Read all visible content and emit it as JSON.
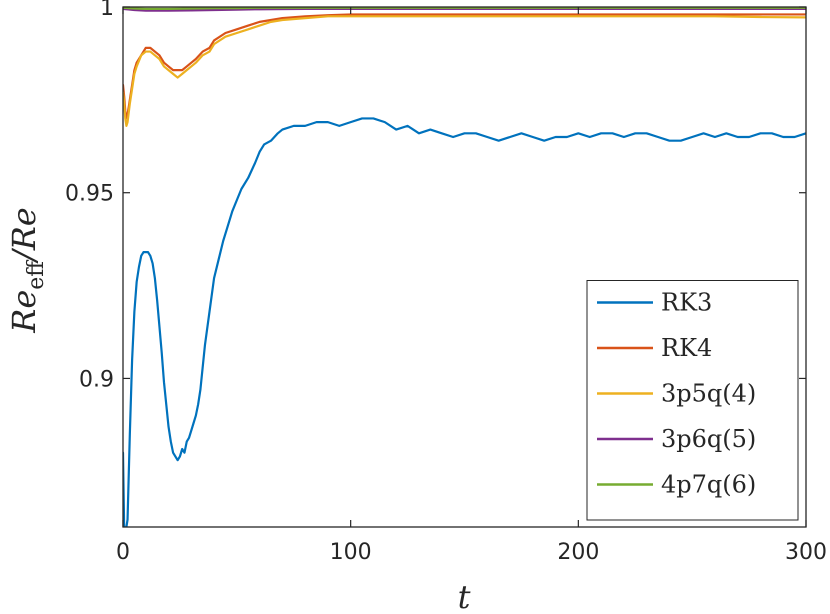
{
  "chart_data": {
    "type": "line",
    "title": "",
    "xlabel": "t",
    "ylabel": {
      "base": "Re",
      "subscript": "eff",
      "suffix": "/Re"
    },
    "xlim": [
      0,
      300
    ],
    "ylim": [
      0.86,
      1.0
    ],
    "xticks": [
      0,
      100,
      200,
      300
    ],
    "xtick_labels": [
      "0",
      "100",
      "200",
      "300"
    ],
    "yticks": [
      0.9,
      0.95,
      1.0
    ],
    "ytick_labels": [
      "0.9",
      "0.95",
      "1"
    ],
    "grid": false,
    "legend_position": "bottom-right",
    "series": [
      {
        "name": "RK3",
        "color": "#0072BD",
        "x": [
          0,
          0.5,
          1,
          2,
          3,
          4,
          5,
          6,
          7,
          8,
          9,
          10,
          11,
          12,
          13,
          14,
          15,
          16,
          17,
          18,
          19,
          20,
          21,
          22,
          23,
          24,
          25,
          26,
          27,
          28,
          29,
          30,
          31,
          32,
          33,
          34,
          35,
          36,
          38,
          40,
          42,
          44,
          46,
          48,
          50,
          52,
          55,
          58,
          60,
          62,
          65,
          68,
          70,
          75,
          80,
          85,
          90,
          95,
          100,
          105,
          110,
          115,
          120,
          125,
          130,
          135,
          140,
          145,
          150,
          155,
          160,
          165,
          170,
          175,
          180,
          185,
          190,
          195,
          200,
          205,
          210,
          215,
          220,
          225,
          230,
          235,
          240,
          245,
          250,
          255,
          260,
          265,
          270,
          275,
          280,
          285,
          290,
          295,
          300
        ],
        "values": [
          0.88,
          0.86,
          0.858,
          0.862,
          0.885,
          0.905,
          0.918,
          0.926,
          0.93,
          0.933,
          0.934,
          0.934,
          0.934,
          0.933,
          0.931,
          0.927,
          0.921,
          0.914,
          0.907,
          0.899,
          0.893,
          0.887,
          0.883,
          0.88,
          0.879,
          0.878,
          0.879,
          0.881,
          0.88,
          0.883,
          0.884,
          0.886,
          0.888,
          0.89,
          0.893,
          0.897,
          0.903,
          0.909,
          0.918,
          0.927,
          0.932,
          0.937,
          0.941,
          0.945,
          0.948,
          0.951,
          0.954,
          0.958,
          0.961,
          0.963,
          0.964,
          0.966,
          0.967,
          0.968,
          0.968,
          0.969,
          0.969,
          0.968,
          0.969,
          0.97,
          0.97,
          0.969,
          0.967,
          0.968,
          0.966,
          0.967,
          0.966,
          0.965,
          0.966,
          0.966,
          0.965,
          0.964,
          0.965,
          0.966,
          0.965,
          0.964,
          0.965,
          0.965,
          0.966,
          0.965,
          0.966,
          0.966,
          0.965,
          0.966,
          0.966,
          0.965,
          0.964,
          0.964,
          0.965,
          0.966,
          0.965,
          0.966,
          0.965,
          0.965,
          0.966,
          0.966,
          0.965,
          0.965,
          0.966
        ]
      },
      {
        "name": "RK4",
        "color": "#D95319",
        "x": [
          0,
          0.5,
          1,
          1.5,
          2,
          3,
          4,
          5,
          6,
          8,
          10,
          12,
          14,
          16,
          18,
          20,
          22,
          24,
          26,
          28,
          30,
          32,
          35,
          38,
          40,
          45,
          50,
          55,
          60,
          65,
          70,
          80,
          90,
          100,
          120,
          140,
          160,
          180,
          200,
          220,
          240,
          260,
          280,
          300
        ],
        "values": [
          0.979,
          0.976,
          0.972,
          0.97,
          0.971,
          0.975,
          0.979,
          0.983,
          0.985,
          0.987,
          0.989,
          0.989,
          0.988,
          0.987,
          0.985,
          0.984,
          0.983,
          0.983,
          0.983,
          0.984,
          0.985,
          0.986,
          0.988,
          0.989,
          0.991,
          0.993,
          0.994,
          0.995,
          0.996,
          0.9965,
          0.997,
          0.9975,
          0.9978,
          0.998,
          0.998,
          0.998,
          0.998,
          0.998,
          0.998,
          0.998,
          0.998,
          0.998,
          0.998,
          0.998
        ]
      },
      {
        "name": "3p5q(4)",
        "color": "#EDB120",
        "x": [
          0,
          0.5,
          1,
          1.5,
          2,
          3,
          4,
          5,
          6,
          8,
          10,
          12,
          14,
          16,
          18,
          20,
          22,
          24,
          26,
          28,
          30,
          32,
          35,
          38,
          40,
          45,
          50,
          55,
          60,
          65,
          70,
          80,
          90,
          100,
          120,
          140,
          160,
          180,
          200,
          220,
          240,
          260,
          280,
          300
        ],
        "values": [
          0.977,
          0.974,
          0.97,
          0.968,
          0.969,
          0.974,
          0.978,
          0.982,
          0.984,
          0.987,
          0.988,
          0.988,
          0.987,
          0.986,
          0.984,
          0.983,
          0.982,
          0.981,
          0.982,
          0.983,
          0.984,
          0.985,
          0.987,
          0.988,
          0.99,
          0.992,
          0.993,
          0.994,
          0.995,
          0.996,
          0.9965,
          0.997,
          0.9975,
          0.9975,
          0.9975,
          0.9975,
          0.9975,
          0.9975,
          0.9975,
          0.9975,
          0.9975,
          0.9975,
          0.9973,
          0.9972
        ]
      },
      {
        "name": "3p6q(5)",
        "color": "#7E2F8E",
        "x": [
          0,
          5,
          10,
          20,
          30,
          40,
          50,
          60,
          80,
          100,
          150,
          200,
          250,
          300
        ],
        "values": [
          0.9995,
          0.9992,
          0.999,
          0.999,
          0.9991,
          0.9992,
          0.9993,
          0.9994,
          0.9995,
          0.9995,
          0.9995,
          0.9995,
          0.9995,
          0.9995
        ]
      },
      {
        "name": "4p7q(6)",
        "color": "#77AC30",
        "x": [
          0,
          5,
          10,
          20,
          30,
          40,
          50,
          60,
          80,
          100,
          150,
          200,
          250,
          300
        ],
        "values": [
          0.9998,
          0.9996,
          0.9995,
          0.9995,
          0.9996,
          0.9997,
          0.9997,
          0.9998,
          0.9998,
          0.9998,
          0.9998,
          0.9998,
          0.9998,
          0.9998
        ]
      }
    ]
  }
}
